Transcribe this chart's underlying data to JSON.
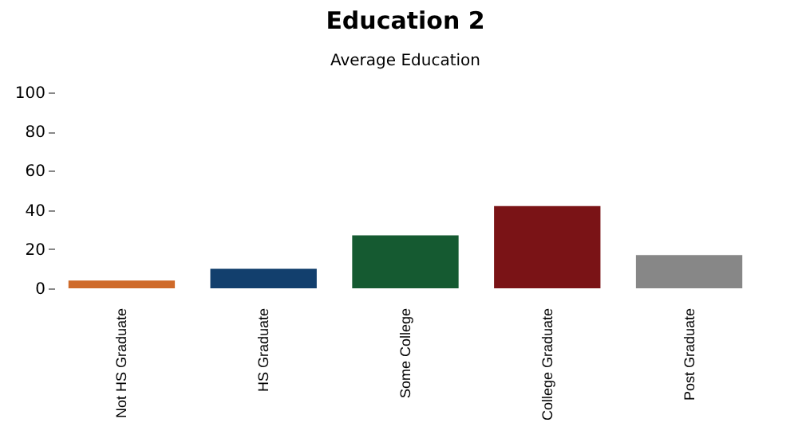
{
  "chart_data": {
    "type": "bar",
    "title": "Education 2",
    "subtitle": "Average Education",
    "categories": [
      "Not HS Graduate",
      "HS Graduate",
      "Some College",
      "College Graduate",
      "Post Graduate"
    ],
    "values": [
      4,
      10,
      27,
      42,
      17
    ],
    "colors": [
      "#cf6a2a",
      "#123f6d",
      "#155a31",
      "#7a1316",
      "#878787"
    ],
    "ylim": [
      0,
      100
    ],
    "yticks": [
      0,
      20,
      40,
      60,
      80,
      100
    ],
    "grid": false,
    "legend": false
  }
}
